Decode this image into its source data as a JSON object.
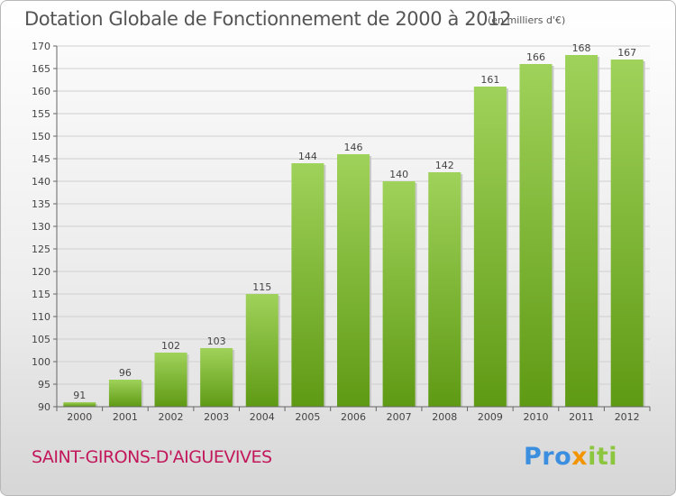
{
  "title": "Dotation Globale de Fonctionnement de 2000 à 2012",
  "unit_note": "(en milliers d'€)",
  "commune": "SAINT-GIRONS-D'AIGUEVIVES",
  "logo": {
    "part1": "Pro",
    "part2": "x",
    "part3": "iti"
  },
  "colors": {
    "bar_top": "#9fd25a",
    "bar_bottom": "#5f9a14",
    "commune": "#c2185b"
  },
  "chart_data": {
    "type": "bar",
    "title": "Dotation Globale de Fonctionnement de 2000 à 2012",
    "subtitle": "(en milliers d'€)",
    "xlabel": "",
    "ylabel": "",
    "categories": [
      "2000",
      "2001",
      "2002",
      "2003",
      "2004",
      "2005",
      "2006",
      "2007",
      "2008",
      "2009",
      "2010",
      "2011",
      "2012"
    ],
    "values": [
      91,
      96,
      102,
      103,
      115,
      144,
      146,
      140,
      142,
      161,
      166,
      168,
      167
    ],
    "ylim": [
      90,
      170
    ],
    "yticks": [
      90,
      95,
      100,
      105,
      110,
      115,
      120,
      125,
      130,
      135,
      140,
      145,
      150,
      155,
      160,
      165,
      170
    ],
    "grid": true,
    "legend": "none"
  }
}
